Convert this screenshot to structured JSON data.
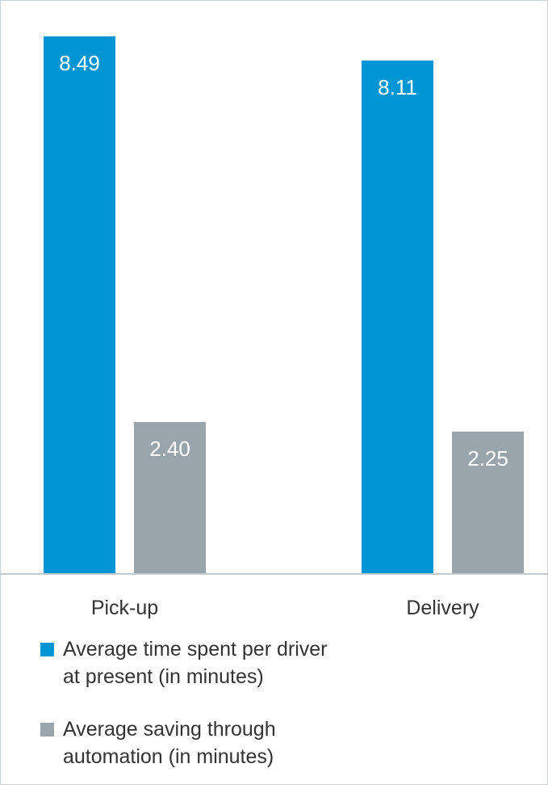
{
  "colors": {
    "primary": "#0096d6",
    "secondary": "#9aa4ab",
    "axis": "#c3cbd2",
    "label_light": "#ffffff",
    "text": "#333333"
  },
  "chart_data": {
    "type": "bar",
    "categories": [
      "Pick-up",
      "Delivery"
    ],
    "series": [
      {
        "name": "Average time spent per driver at present (in minutes)",
        "values": [
          8.49,
          8.11
        ],
        "value_labels": [
          "8.49",
          "8.11"
        ],
        "color": "#0096d6"
      },
      {
        "name": "Average saving through automation (in minutes)",
        "values": [
          2.4,
          2.25
        ],
        "value_labels": [
          "2.40",
          "2.25"
        ],
        "color": "#9aa4ab"
      }
    ],
    "ylim": [
      0,
      8.49
    ],
    "grid": false,
    "legend_position": "bottom-left",
    "title": "",
    "xlabel": "",
    "ylabel": ""
  },
  "legend": {
    "items": [
      {
        "line1": "Average time spent per driver",
        "line2": "at present (in minutes)"
      },
      {
        "line1": "Average saving through",
        "line2": "automation (in minutes)"
      }
    ]
  }
}
